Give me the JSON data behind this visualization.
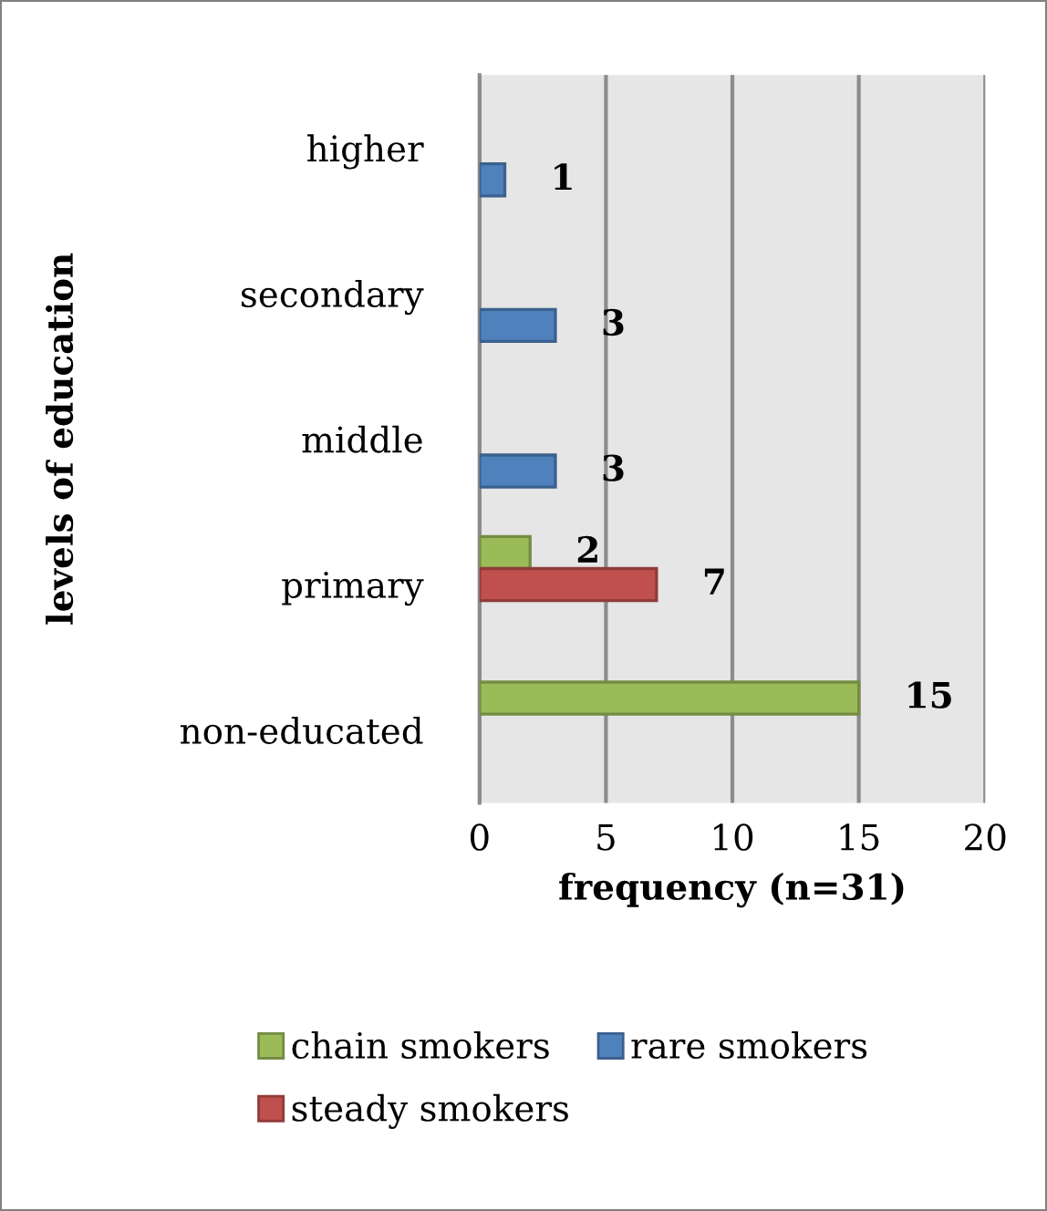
{
  "chart_data": {
    "type": "bar",
    "orientation": "horizontal",
    "categories": [
      "higher",
      "secondary",
      "middle",
      "primary",
      "non-educated"
    ],
    "series": [
      {
        "name": "chain smokers",
        "color": "#9bbb59",
        "values": [
          null,
          null,
          null,
          2,
          15
        ]
      },
      {
        "name": "steady smokers",
        "color": "#c0504d",
        "values": [
          null,
          null,
          null,
          7,
          null
        ]
      },
      {
        "name": "rare smokers",
        "color": "#4f81bd",
        "values": [
          1,
          3,
          3,
          null,
          null
        ]
      }
    ],
    "xlabel": "frequency (n=31)",
    "ylabel": "levels of education",
    "xlim": [
      0,
      20
    ],
    "xticks": [
      0,
      5,
      10,
      15,
      20
    ],
    "grid": "x",
    "legend": "bottom",
    "data_labels": true
  }
}
